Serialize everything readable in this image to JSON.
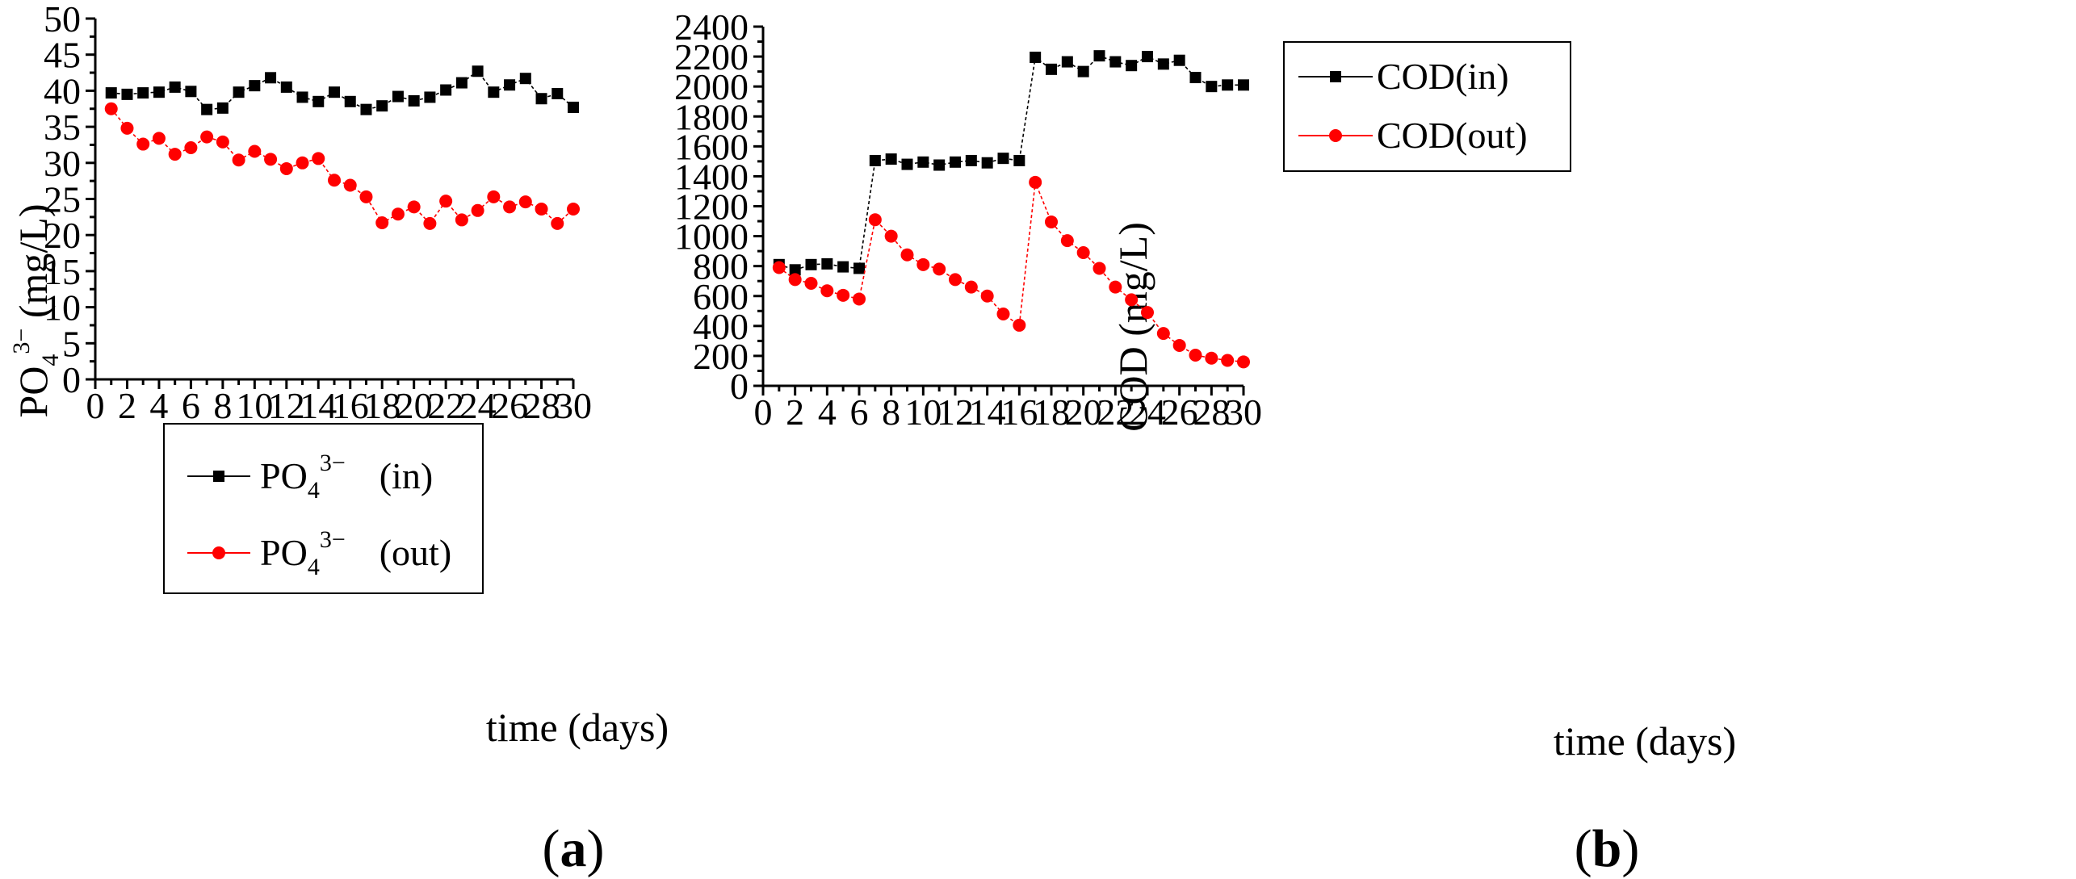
{
  "chart_data": [
    {
      "type": "line",
      "panel_label": "a",
      "xlabel": "time (days)",
      "ylabel": {
        "base": "PO",
        "sub": "4",
        "sup": "3−",
        "unit": " (mg/L)"
      },
      "xlim": [
        0,
        30
      ],
      "ylim": [
        0,
        50
      ],
      "x_ticks": [
        0,
        2,
        4,
        6,
        8,
        10,
        12,
        14,
        16,
        18,
        20,
        22,
        24,
        26,
        28,
        30
      ],
      "y_ticks": [
        0,
        5,
        10,
        15,
        20,
        25,
        30,
        35,
        40,
        45,
        50
      ],
      "legend_position": "bottom-left",
      "x": [
        1,
        2,
        3,
        4,
        5,
        6,
        7,
        8,
        9,
        10,
        11,
        12,
        13,
        14,
        15,
        16,
        17,
        18,
        19,
        20,
        21,
        22,
        23,
        24,
        25,
        26,
        27,
        28,
        29,
        30
      ],
      "series": [
        {
          "name": "PO4 3− (in)",
          "legend": {
            "base": "PO",
            "sub": "4",
            "sup": "3−",
            "suffix": "(in)"
          },
          "color": "#000000",
          "marker": "square",
          "values": [
            39.7,
            39.5,
            39.7,
            39.8,
            40.5,
            39.9,
            37.4,
            37.6,
            39.8,
            40.7,
            41.8,
            40.5,
            39.1,
            38.5,
            39.8,
            38.5,
            37.4,
            37.9,
            39.2,
            38.6,
            39.1,
            40.1,
            41.1,
            42.7,
            39.8,
            40.8,
            41.7,
            38.9,
            39.6,
            37.7
          ]
        },
        {
          "name": "PO4 3− (out)",
          "legend": {
            "base": "PO",
            "sub": "4",
            "sup": "3−",
            "suffix": "(out)"
          },
          "color": "#ff0000",
          "marker": "circle",
          "values": [
            37.5,
            34.8,
            32.6,
            33.4,
            31.2,
            32.1,
            33.6,
            32.9,
            30.4,
            31.6,
            30.5,
            29.2,
            30.0,
            30.6,
            27.6,
            26.9,
            25.3,
            21.7,
            22.9,
            23.9,
            21.6,
            24.7,
            22.1,
            23.4,
            25.3,
            23.9,
            24.6,
            23.6,
            21.6,
            23.6
          ]
        }
      ]
    },
    {
      "type": "line",
      "panel_label": "b",
      "xlabel": "time (days)",
      "ylabel": {
        "base": "COD (mg/L)"
      },
      "xlim": [
        0,
        30
      ],
      "ylim": [
        0,
        2400
      ],
      "x_ticks": [
        0,
        2,
        4,
        6,
        8,
        10,
        12,
        14,
        16,
        18,
        20,
        22,
        24,
        26,
        28,
        30
      ],
      "y_ticks": [
        0,
        200,
        400,
        600,
        800,
        1000,
        1200,
        1400,
        1600,
        1800,
        2000,
        2200,
        2400
      ],
      "legend_position": "top-left",
      "x": [
        1,
        2,
        3,
        4,
        5,
        6,
        7,
        8,
        9,
        10,
        11,
        12,
        13,
        14,
        15,
        16,
        17,
        18,
        19,
        20,
        21,
        22,
        23,
        24,
        25,
        26,
        27,
        28,
        29,
        30
      ],
      "series": [
        {
          "name": "COD(in)",
          "legend": {
            "base": "COD(in)"
          },
          "color": "#000000",
          "marker": "square",
          "values": [
            810,
            775,
            810,
            815,
            795,
            785,
            1505,
            1515,
            1480,
            1495,
            1475,
            1495,
            1505,
            1490,
            1520,
            1505,
            2195,
            2115,
            2165,
            2100,
            2205,
            2165,
            2140,
            2200,
            2150,
            2175,
            2060,
            2000,
            2010,
            2010
          ]
        },
        {
          "name": "COD(out)",
          "legend": {
            "base": "COD(out)"
          },
          "color": "#ff0000",
          "marker": "circle",
          "values": [
            790,
            710,
            685,
            635,
            605,
            580,
            1110,
            1000,
            875,
            810,
            780,
            710,
            660,
            600,
            480,
            405,
            1360,
            1095,
            970,
            890,
            785,
            660,
            575,
            490,
            350,
            270,
            205,
            185,
            170,
            160
          ]
        }
      ]
    }
  ]
}
